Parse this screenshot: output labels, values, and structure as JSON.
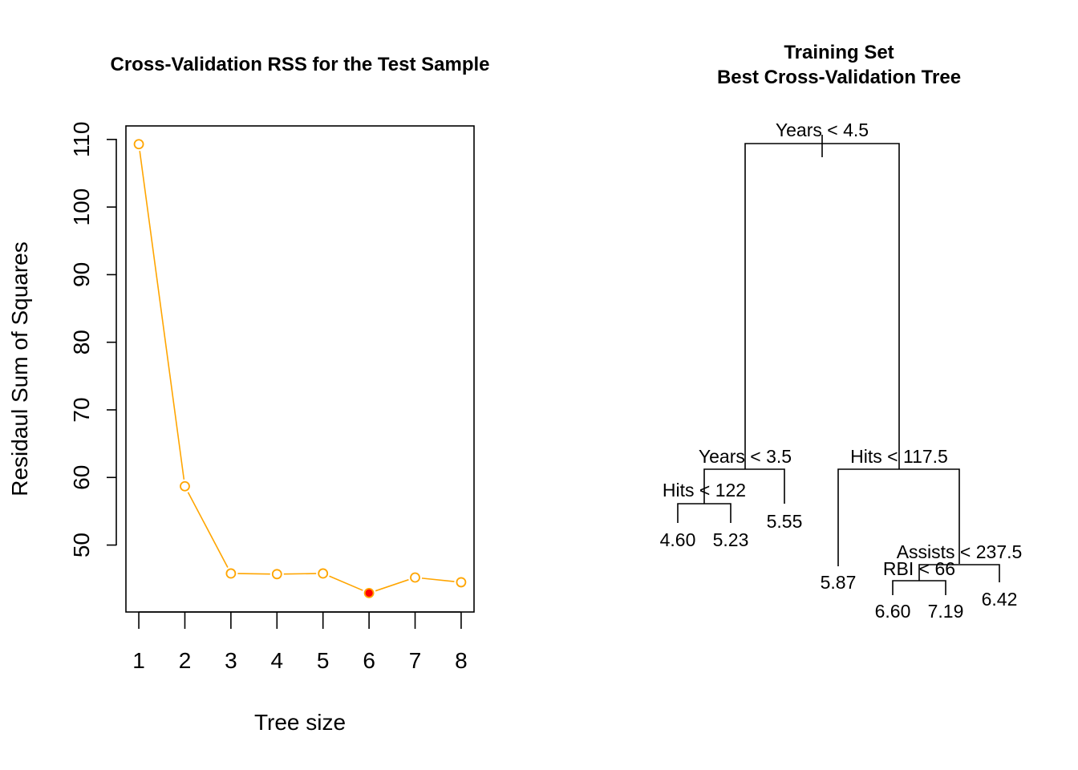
{
  "chart_data": [
    {
      "type": "line",
      "title": "Cross-Validation RSS for the Test Sample",
      "xlabel": "Tree size",
      "ylabel": "Residaul Sum of Squares",
      "x": [
        1,
        2,
        3,
        4,
        5,
        6,
        7,
        8
      ],
      "y": [
        109.3,
        58.7,
        45.8,
        45.7,
        45.8,
        42.9,
        45.2,
        44.5
      ],
      "xlim": [
        0.72,
        8.28
      ],
      "ylim": [
        40.1,
        112.0
      ],
      "xticks": [
        "1",
        "2",
        "3",
        "4",
        "5",
        "6",
        "7",
        "8"
      ],
      "yticks": [
        50,
        60,
        70,
        80,
        90,
        100,
        110
      ],
      "best_index": 5,
      "line_color": "#FFA500",
      "best_fill": "#FF0000",
      "grid": false,
      "legend": null
    },
    {
      "type": "tree",
      "title_line1": "Training Set",
      "title_line2": "Best Cross-Validation Tree",
      "splits": [
        {
          "id": "root",
          "label": "Years < 4.5"
        },
        {
          "id": "years35",
          "label": "Years < 3.5"
        },
        {
          "id": "hits122",
          "label": "Hits < 122"
        },
        {
          "id": "hits1175",
          "label": "Hits < 117.5"
        },
        {
          "id": "assists",
          "label": "Assists < 237.5"
        },
        {
          "id": "rbi",
          "label": "RBI < 66"
        }
      ],
      "leaves": [
        {
          "id": "leaf1",
          "value": "4.60"
        },
        {
          "id": "leaf2",
          "value": "5.23"
        },
        {
          "id": "leaf3",
          "value": "5.55"
        },
        {
          "id": "leaf4",
          "value": "5.87"
        },
        {
          "id": "leaf5",
          "value": "6.60"
        },
        {
          "id": "leaf6",
          "value": "7.19"
        },
        {
          "id": "leaf7",
          "value": "6.42"
        }
      ]
    }
  ]
}
